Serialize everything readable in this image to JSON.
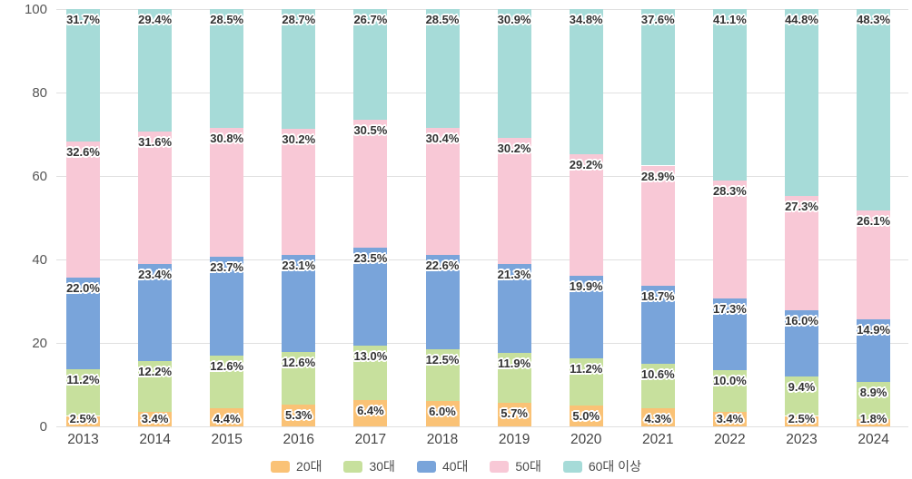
{
  "chart_data": {
    "type": "bar",
    "stacked": true,
    "percent_stack": true,
    "title": "",
    "xlabel": "",
    "ylabel": "",
    "ylim": [
      0,
      100
    ],
    "yticks": [
      0,
      20,
      40,
      60,
      80,
      100
    ],
    "grid": true,
    "legend_position": "bottom",
    "value_label_format": "{value}%",
    "categories": [
      "2013",
      "2014",
      "2015",
      "2016",
      "2017",
      "2018",
      "2019",
      "2020",
      "2021",
      "2022",
      "2023",
      "2024"
    ],
    "series": [
      {
        "name": "20대",
        "color": "#FAC276",
        "values": [
          2.5,
          3.4,
          4.4,
          5.3,
          6.4,
          6.0,
          5.7,
          5.0,
          4.3,
          3.4,
          2.5,
          1.8
        ]
      },
      {
        "name": "30대",
        "color": "#C7E09D",
        "values": [
          11.2,
          12.2,
          12.6,
          12.6,
          13.0,
          12.5,
          11.9,
          11.2,
          10.6,
          10.0,
          9.4,
          8.9
        ]
      },
      {
        "name": "40대",
        "color": "#79A4DA",
        "values": [
          22.0,
          23.4,
          23.7,
          23.1,
          23.5,
          22.6,
          21.3,
          19.9,
          18.7,
          17.3,
          16.0,
          14.9
        ]
      },
      {
        "name": "50대",
        "color": "#F8C8D6",
        "values": [
          32.6,
          31.6,
          30.8,
          30.2,
          30.5,
          30.4,
          30.2,
          29.2,
          28.9,
          28.3,
          27.3,
          26.1
        ]
      },
      {
        "name": "60대 이상",
        "color": "#A6DBD8",
        "values": [
          31.7,
          29.4,
          28.5,
          28.7,
          26.7,
          28.5,
          30.9,
          34.8,
          37.6,
          41.1,
          44.8,
          48.3
        ]
      }
    ],
    "colors": {
      "gridline": "#e0e0e0",
      "axis_text": "#555555",
      "value_label_text": "#333333"
    }
  }
}
